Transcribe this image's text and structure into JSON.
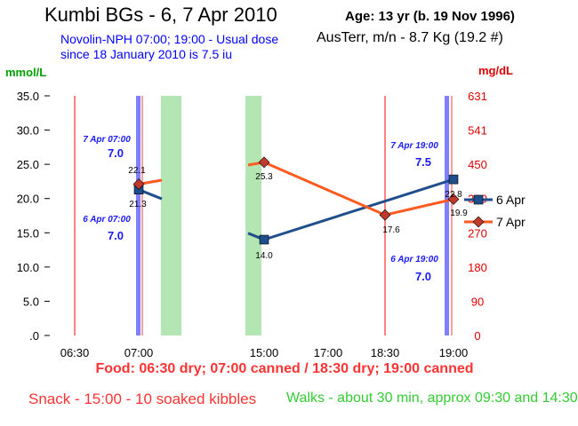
{
  "header": {
    "title": "Kumbi BGs - 6, 7 Apr 2010",
    "age": "Age: 13 yr (b. 19 Nov 1996)",
    "dose_line1": "Novolin-NPH 07:00; 19:00 - Usual dose",
    "dose_line2": "since 18 January 2010 is 7.5 iu",
    "weight": "AusTerr, m/n - 8.7 Kg (19.2 #)"
  },
  "footer": {
    "food": "Food: 06:30 dry; 07:00 canned / 18:30 dry; 19:00 canned",
    "snack": "Snack - 15:00 - 10 soaked kibbles",
    "walks": "Walks - about 30 min, approx 09:30 and 14:30"
  },
  "colors": {
    "series_6apr": "#1f4e8c",
    "series_7apr": "#ff5a1f",
    "marker_7apr": "#c0392b",
    "dose_text": "#1a1aff",
    "food_line": "#ff8080",
    "nph_line": "#8080ff",
    "band": "#b3e6b3"
  },
  "chart_data": {
    "type": "line",
    "ylabel_left": "mmol/L",
    "ylabel_right": "mg/dL",
    "ylim_left": [
      0,
      35
    ],
    "ylim_right": [
      0,
      631
    ],
    "left_ticks": [
      "35.0",
      "30.0",
      "25.0",
      "20.0",
      "15.0",
      "10.0",
      "5.0",
      ".0"
    ],
    "right_ticks": [
      "631",
      "541",
      "450",
      "360",
      "270",
      "180",
      "90",
      "0"
    ],
    "x_ticks": [
      "06:30",
      "07:00",
      "15:00",
      "17:00",
      "18:30",
      "19:00"
    ],
    "legend_position": "right",
    "series": [
      {
        "name": "6 Apr",
        "points": [
          {
            "x": "07:00",
            "y": 21.3,
            "label": "21.3"
          },
          {
            "x": "15:00",
            "y": 14.0,
            "label": "14.0"
          },
          {
            "x": "19:00",
            "y": 22.8,
            "label": "22.8"
          }
        ]
      },
      {
        "name": "7 Apr",
        "points": [
          {
            "x": "07:00",
            "y": 22.1,
            "label": "22.1"
          },
          {
            "x": "15:00",
            "y": 25.3,
            "label": "25.3"
          },
          {
            "x": "18:30",
            "y": 17.6,
            "label": "17.6"
          },
          {
            "x": "19:00",
            "y": 19.9,
            "label": "19.9"
          }
        ]
      }
    ],
    "dose_annotations": [
      {
        "date": "7 Apr 07:00",
        "dose": "7.0"
      },
      {
        "date": "6 Apr 07:00",
        "dose": "7.0"
      },
      {
        "date": "7 Apr 19:00",
        "dose": "7.5"
      },
      {
        "date": "6 Apr 19:00",
        "dose": "7.0"
      }
    ]
  }
}
